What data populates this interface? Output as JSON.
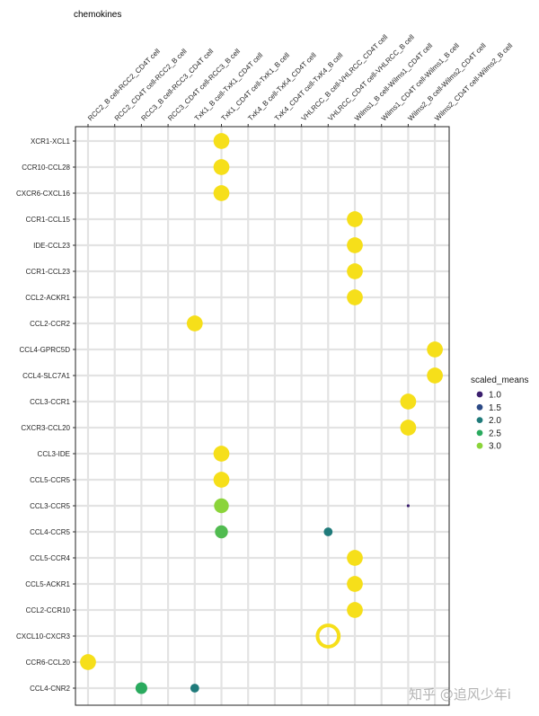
{
  "watermark": "知乎 @追风少年i",
  "chart_data": {
    "type": "scatter",
    "title": "chemokines",
    "x_categories": [
      "RCC2_B cell-RCC2_CD4T cell",
      "RCC2_CD4T cell-RCC2_B cell",
      "RCC3_B cell-RCC3_CD4T cell",
      "RCC3_CD4T cell-RCC3_B cell",
      "TxK1_B cell-TxK1_CD4T cell",
      "TxK1_CD4T cell-TxK1_B cell",
      "TxK4_B cell-TxK4_CD4T cell",
      "TxK4_CD4T cell-TxK4_B cell",
      "VHLRCC_B cell-VHLRCC_CD4T cell",
      "VHLRCC_CD4T cell-VHLRCC_B cell",
      "Wilms1_B cell-Wilms1_CD4T cell",
      "Wilms1_CD4T cell-Wilms1_B cell",
      "Wilms2_B cell-Wilms2_CD4T cell",
      "Wilms2_CD4T cell-Wilms2_B cell"
    ],
    "y_categories": [
      "XCR1-XCL1",
      "CCR10-CCL28",
      "CXCR6-CXCL16",
      "CCR1-CCL15",
      "IDE-CCL23",
      "CCR1-CCL23",
      "CCL2-ACKR1",
      "CCL2-CCR2",
      "CCL4-GPRC5D",
      "CCL4-SLC7A1",
      "CCL3-CCR1",
      "CXCR3-CCL20",
      "CCL3-IDE",
      "CCL5-CCR5",
      "CCL3-CCR5",
      "CCL4-CCR5",
      "CCL5-CCR4",
      "CCL5-ACKR1",
      "CCL2-CCR10",
      "CXCL10-CXCR3",
      "CCR6-CCL20",
      "CCL4-CNR2"
    ],
    "points": [
      {
        "x": "TxK1_CD4T cell-TxK1_B cell",
        "y": "XCR1-XCL1",
        "scaled_means": 3.2
      },
      {
        "x": "TxK1_CD4T cell-TxK1_B cell",
        "y": "CCR10-CCL28",
        "scaled_means": 3.2
      },
      {
        "x": "TxK1_CD4T cell-TxK1_B cell",
        "y": "CXCR6-CXCL16",
        "scaled_means": 3.2
      },
      {
        "x": "Wilms1_B cell-Wilms1_CD4T cell",
        "y": "CCR1-CCL15",
        "scaled_means": 3.2
      },
      {
        "x": "Wilms1_B cell-Wilms1_CD4T cell",
        "y": "IDE-CCL23",
        "scaled_means": 3.2
      },
      {
        "x": "Wilms1_B cell-Wilms1_CD4T cell",
        "y": "CCR1-CCL23",
        "scaled_means": 3.2
      },
      {
        "x": "Wilms1_B cell-Wilms1_CD4T cell",
        "y": "CCL2-ACKR1",
        "scaled_means": 3.2
      },
      {
        "x": "TxK1_B cell-TxK1_CD4T cell",
        "y": "CCL2-CCR2",
        "scaled_means": 3.2
      },
      {
        "x": "Wilms2_CD4T cell-Wilms2_B cell",
        "y": "CCL4-GPRC5D",
        "scaled_means": 3.2
      },
      {
        "x": "Wilms2_CD4T cell-Wilms2_B cell",
        "y": "CCL4-SLC7A1",
        "scaled_means": 3.2
      },
      {
        "x": "Wilms2_B cell-Wilms2_CD4T cell",
        "y": "CCL3-CCR1",
        "scaled_means": 3.2
      },
      {
        "x": "Wilms2_B cell-Wilms2_CD4T cell",
        "y": "CXCR3-CCL20",
        "scaled_means": 3.2
      },
      {
        "x": "TxK1_CD4T cell-TxK1_B cell",
        "y": "CCL3-IDE",
        "scaled_means": 3.2
      },
      {
        "x": "TxK1_CD4T cell-TxK1_B cell",
        "y": "CCL5-CCR5",
        "scaled_means": 3.2
      },
      {
        "x": "TxK1_CD4T cell-TxK1_B cell",
        "y": "CCL3-CCR5",
        "scaled_means": 3.0
      },
      {
        "x": "Wilms2_B cell-Wilms2_CD4T cell",
        "y": "CCL3-CCR5",
        "scaled_means": 1.0
      },
      {
        "x": "TxK1_CD4T cell-TxK1_B cell",
        "y": "CCL4-CCR5",
        "scaled_means": 2.7
      },
      {
        "x": "VHLRCC_CD4T cell-VHLRCC_B cell",
        "y": "CCL4-CCR5",
        "scaled_means": 2.0
      },
      {
        "x": "Wilms1_B cell-Wilms1_CD4T cell",
        "y": "CCL5-CCR4",
        "scaled_means": 3.2
      },
      {
        "x": "Wilms1_B cell-Wilms1_CD4T cell",
        "y": "CCL5-ACKR1",
        "scaled_means": 3.2
      },
      {
        "x": "Wilms1_B cell-Wilms1_CD4T cell",
        "y": "CCL2-CCR10",
        "scaled_means": 3.2
      },
      {
        "x": "VHLRCC_CD4T cell-VHLRCC_B cell",
        "y": "CXCL10-CXCR3",
        "scaled_means": 3.2,
        "hollow": true
      },
      {
        "x": "RCC2_B cell-RCC2_CD4T cell",
        "y": "CCR6-CCL20",
        "scaled_means": 3.2
      },
      {
        "x": "RCC3_B cell-RCC3_CD4T cell",
        "y": "CCL4-CNR2",
        "scaled_means": 2.5
      },
      {
        "x": "TxK1_B cell-TxK1_CD4T cell",
        "y": "CCL4-CNR2",
        "scaled_means": 2.0
      }
    ],
    "legend": {
      "title": "scaled_means",
      "position": "right",
      "entries": [
        {
          "label": "1.0",
          "value": 1.0,
          "color": "#3b1f6e"
        },
        {
          "label": "1.5",
          "value": 1.5,
          "color": "#2c4a86"
        },
        {
          "label": "2.0",
          "value": 2.0,
          "color": "#1f7a7a"
        },
        {
          "label": "2.5",
          "value": 2.5,
          "color": "#2aaa5e"
        },
        {
          "label": "3.0",
          "value": 3.0,
          "color": "#8bd43a"
        }
      ]
    },
    "color_scale": {
      "name": "viridis",
      "stops": [
        {
          "value": 1.0,
          "color": "#3b1f6e"
        },
        {
          "value": 1.5,
          "color": "#2c4a86"
        },
        {
          "value": 2.0,
          "color": "#1f7a7a"
        },
        {
          "value": 2.5,
          "color": "#2aaa5e"
        },
        {
          "value": 3.0,
          "color": "#8bd43a"
        },
        {
          "value": 3.2,
          "color": "#f6df1a"
        }
      ]
    },
    "grid": true
  }
}
